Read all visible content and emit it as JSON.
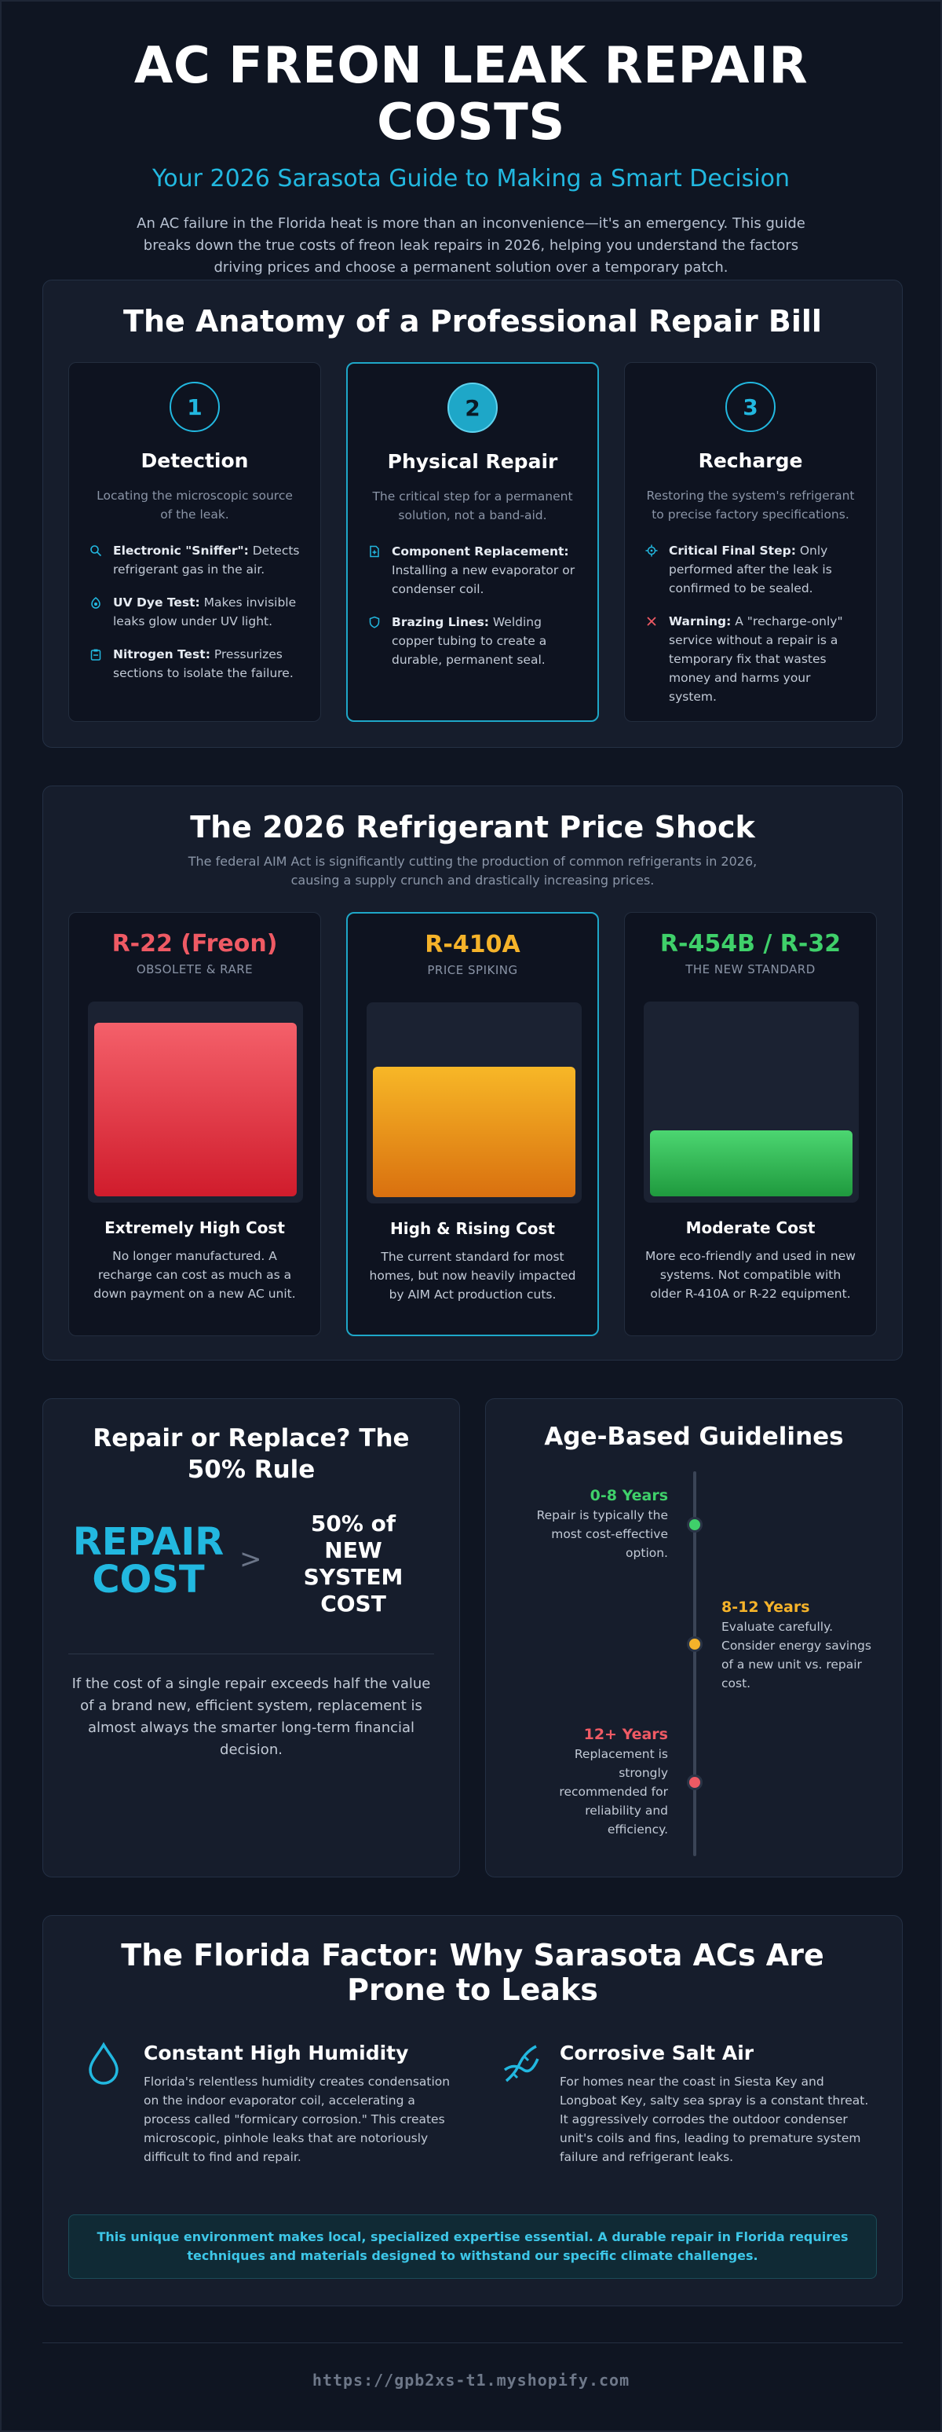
{
  "hero": {
    "title": "AC FREON LEAK REPAIR COSTS",
    "subtitle": "Your 2026 Sarasota Guide to Making a Smart Decision",
    "intro": "An AC failure in the Florida heat is more than an inconvenience—it's an emergency. This guide breaks down the true costs of freon leak repairs in 2026, helping you understand the factors driving prices and choose a permanent solution over a temporary patch."
  },
  "anatomy": {
    "title": "The Anatomy of a Professional Repair Bill",
    "steps": [
      {
        "num": "1",
        "title": "Detection",
        "desc": "Locating the microscopic source of the leak.",
        "bullets": [
          {
            "icon": "search-icon",
            "bold": "Electronic \"Sniffer\":",
            "text": " Detects refrigerant gas in the air."
          },
          {
            "icon": "eye-icon",
            "bold": "UV Dye Test:",
            "text": " Makes invisible leaks glow under UV light."
          },
          {
            "icon": "clipboard-icon",
            "bold": "Nitrogen Test:",
            "text": " Pressurizes sections to isolate the failure."
          }
        ]
      },
      {
        "num": "2",
        "title": "Physical Repair",
        "desc": "The critical step for a permanent solution, not a band-aid.",
        "bullets": [
          {
            "icon": "document-icon",
            "bold": "Component Replacement:",
            "text": " Installing a new evaporator or condenser coil."
          },
          {
            "icon": "shield-icon",
            "bold": "Brazing Lines:",
            "text": " Welding copper tubing to create a durable, permanent seal."
          }
        ]
      },
      {
        "num": "3",
        "title": "Recharge",
        "desc": "Restoring the system's refrigerant to precise factory specifications.",
        "bullets": [
          {
            "icon": "target-icon",
            "bold": "Critical Final Step:",
            "text": " Only performed after the leak is confirmed to be sealed."
          },
          {
            "icon": "x-icon",
            "bold": "Warning:",
            "text": " A \"recharge-only\" service without a repair is a temporary fix that wastes money and harms your system."
          }
        ]
      }
    ]
  },
  "price": {
    "title": "The 2026 Refrigerant Price Shock",
    "subtitle": "The federal AIM Act is significantly cutting the production of common refrigerants in 2026, causing a supply crunch and drastically increasing prices.",
    "cards": [
      {
        "name": "R-22 (Freon)",
        "tag": "OBSOLETE & RARE",
        "level": 0.92,
        "color": "#ef5a64",
        "fill_top": "#f4606a",
        "fill_bottom": "#d01c2c",
        "cost": "Extremely High Cost",
        "desc": "No longer manufactured. A recharge can cost as much as a down payment on a new AC unit."
      },
      {
        "name": "R-410A",
        "tag": "PRICE SPIKING",
        "level": 0.69,
        "color": "#f5b32a",
        "fill_top": "#f7b727",
        "fill_bottom": "#d9700f",
        "cost": "High & Rising Cost",
        "desc": "The current standard for most homes, but now heavily impacted by AIM Act production cuts."
      },
      {
        "name": "R-454B / R-32",
        "tag": "THE NEW STANDARD",
        "level": 0.35,
        "color": "#3fd06a",
        "fill_top": "#4cd671",
        "fill_bottom": "#1f9a3e",
        "cost": "Moderate Cost",
        "desc": "More eco-friendly and used in new systems. Not compatible with older R-410A or R-22 equipment."
      }
    ]
  },
  "rule": {
    "title": "Repair or Replace? The 50% Rule",
    "left": "REPAIR COST",
    "op": ">",
    "right": "50% of NEW SYSTEM COST",
    "text": "If the cost of a single repair exceeds half the value of a brand new, efficient system, replacement is almost always the smarter long-term financial decision."
  },
  "age": {
    "title": "Age-Based Guidelines",
    "items": [
      {
        "years": "0-8 Years",
        "text": "Repair is typically the most cost-effective option.",
        "color": "#3fd06a"
      },
      {
        "years": "8-12 Years",
        "text": "Evaluate carefully. Consider energy savings of a new unit vs. repair cost.",
        "color": "#f5b32a"
      },
      {
        "years": "12+ Years",
        "text": "Replacement is strongly recommended for reliability and efficiency.",
        "color": "#ef5a64"
      }
    ]
  },
  "florida": {
    "title": "The Florida Factor: Why Sarasota ACs Are Prone to Leaks",
    "factors": [
      {
        "icon": "water-drop-icon",
        "title": "Constant High Humidity",
        "text": "Florida's relentless humidity creates condensation on the indoor evaporator coil, accelerating a process called \"formicary corrosion.\" This creates microscopic, pinhole leaks that are notoriously difficult to find and repair."
      },
      {
        "icon": "dna-icon",
        "title": "Corrosive Salt Air",
        "text": "For homes near the coast in Siesta Key and Longboat Key, salty sea spray is a constant threat. It aggressively corrodes the outdoor condenser unit's coils and fins, leading to premature system failure and refrigerant leaks."
      }
    ],
    "note": "This unique environment makes local, specialized expertise essential. A durable repair in Florida requires techniques and materials designed to withstand our specific climate challenges."
  },
  "footer": {
    "url": "https://gpb2xs-t1.myshopify.com"
  },
  "colors": {
    "accent": "#22b8e0",
    "background": "#0f1522",
    "card": "#161d2c"
  }
}
